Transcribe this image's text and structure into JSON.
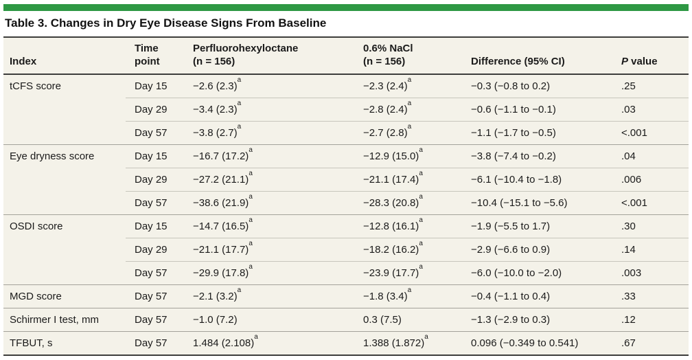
{
  "page": {
    "title": "Table 3. Changes in Dry Eye Disease Signs From Baseline"
  },
  "colors": {
    "accent_green": "#2e9844",
    "table_background": "#f4f2e9",
    "rule_dark": "#3d3d3b",
    "rule_group_separator": "#a3a29a",
    "rule_sub_separator": "#c7c6bc",
    "text": "#1a1a1a"
  },
  "table": {
    "footnote_marker": "a",
    "columns": [
      {
        "id": "index",
        "lines": [
          "Index"
        ]
      },
      {
        "id": "time_point",
        "lines": [
          "Time",
          "point"
        ]
      },
      {
        "id": "pfhx",
        "lines": [
          "Perfluorohexyloctane",
          "(n = 156)"
        ]
      },
      {
        "id": "nacl",
        "lines": [
          "0.6% NaCl",
          "(n = 156)"
        ]
      },
      {
        "id": "difference",
        "lines": [
          "Difference (95% CI)"
        ]
      },
      {
        "id": "p_value",
        "lines": [
          "P value"
        ],
        "italic_first_letter": true
      }
    ],
    "rows": [
      {
        "group_start": true,
        "index": "tCFS score",
        "time_point": "Day 15",
        "pfhx": "−2.6 (2.3)^a",
        "nacl": "−2.3 (2.4)^a",
        "difference": "−0.3 (−0.8 to 0.2)",
        "p_value": ".25"
      },
      {
        "group_start": false,
        "index": "",
        "time_point": "Day 29",
        "pfhx": "−3.4 (2.3)^a",
        "nacl": "−2.8 (2.4)^a",
        "difference": "−0.6 (−1.1 to −0.1)",
        "p_value": ".03"
      },
      {
        "group_start": false,
        "index": "",
        "time_point": "Day 57",
        "pfhx": "−3.8 (2.7)^a",
        "nacl": "−2.7 (2.8)^a",
        "difference": "−1.1 (−1.7 to −0.5)",
        "p_value": "<.001"
      },
      {
        "group_start": true,
        "index": "Eye dryness score",
        "time_point": "Day 15",
        "pfhx": "−16.7 (17.2)^a",
        "nacl": "−12.9 (15.0)^a",
        "difference": "−3.8 (−7.4 to −0.2)",
        "p_value": ".04"
      },
      {
        "group_start": false,
        "index": "",
        "time_point": "Day 29",
        "pfhx": "−27.2 (21.1)^a",
        "nacl": "−21.1 (17.4)^a",
        "difference": "−6.1 (−10.4 to −1.8)",
        "p_value": ".006"
      },
      {
        "group_start": false,
        "index": "",
        "time_point": "Day 57",
        "pfhx": "−38.6 (21.9)^a",
        "nacl": "−28.3 (20.8)^a",
        "difference": "−10.4 (−15.1 to −5.6)",
        "p_value": "<.001"
      },
      {
        "group_start": true,
        "index": "OSDI score",
        "time_point": "Day 15",
        "pfhx": "−14.7 (16.5)^a",
        "nacl": "−12.8 (16.1)^a",
        "difference": "−1.9 (−5.5 to 1.7)",
        "p_value": ".30"
      },
      {
        "group_start": false,
        "index": "",
        "time_point": "Day 29",
        "pfhx": "−21.1 (17.7)^a",
        "nacl": "−18.2 (16.2)^a",
        "difference": "−2.9 (−6.6 to 0.9)",
        "p_value": ".14"
      },
      {
        "group_start": false,
        "index": "",
        "time_point": "Day 57",
        "pfhx": "−29.9 (17.8)^a",
        "nacl": "−23.9 (17.7)^a",
        "difference": "−6.0 (−10.0 to −2.0)",
        "p_value": ".003"
      },
      {
        "group_start": true,
        "index": "MGD score",
        "time_point": "Day 57",
        "pfhx": "−2.1 (3.2)^a",
        "nacl": "−1.8 (3.4)^a",
        "difference": "−0.4 (−1.1 to 0.4)",
        "p_value": ".33"
      },
      {
        "group_start": true,
        "index": "Schirmer I test, mm",
        "time_point": "Day 57",
        "pfhx": "−1.0 (7.2)",
        "nacl": "0.3 (7.5)",
        "difference": "−1.3 (−2.9 to 0.3)",
        "p_value": ".12"
      },
      {
        "group_start": true,
        "index": "TFBUT, s",
        "time_point": "Day 57",
        "pfhx": "1.484 (2.108)^a",
        "nacl": "1.388 (1.872)^a",
        "difference": "0.096 (−0.349 to 0.541)",
        "p_value": ".67"
      }
    ]
  }
}
